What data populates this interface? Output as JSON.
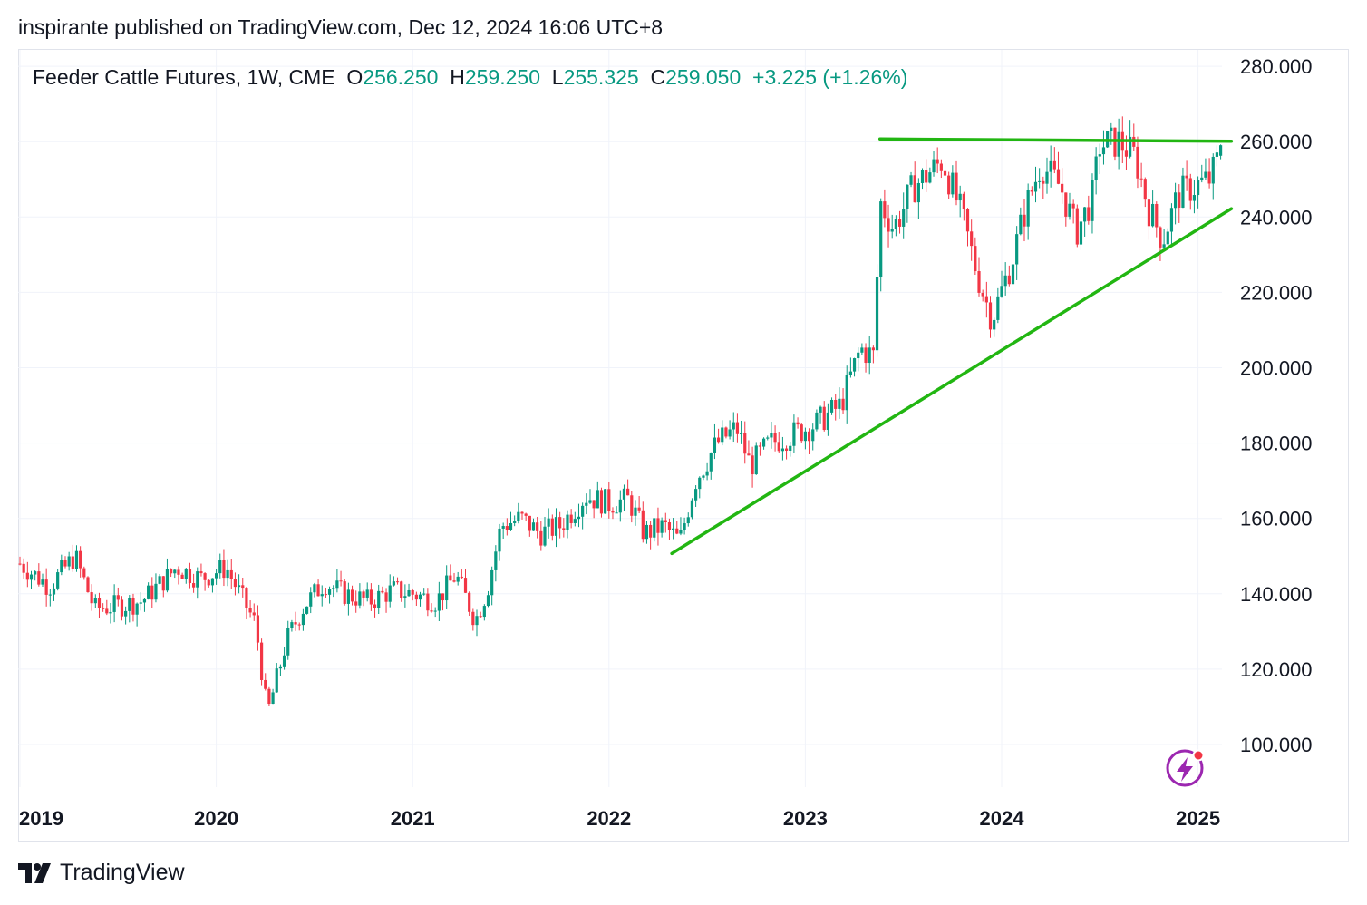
{
  "header": {
    "publish_text": "inspirante published on TradingView.com, Dec 12, 2024 16:06 UTC+8"
  },
  "legend": {
    "symbol": "Feeder Cattle Futures, 1W, CME",
    "open_label": "O",
    "open_value": "256.250",
    "high_label": "H",
    "high_value": "259.250",
    "low_label": "L",
    "low_value": "255.325",
    "close_label": "C",
    "close_value": "259.050",
    "change": "+3.225 (+1.26%)"
  },
  "footer": {
    "brand": "TradingView",
    "logo_icon": "tradingview-logo-icon"
  },
  "colors": {
    "up": "#089981",
    "down": "#f23645",
    "trendline": "#22b612",
    "grid": "#f0f3fa",
    "alert": "#9c27b0"
  },
  "chart_data": {
    "type": "candlestick",
    "title": "Feeder Cattle Futures, 1W, CME",
    "x_tick_labels": [
      "2019",
      "2020",
      "2021",
      "2022",
      "2023",
      "2024",
      "2025"
    ],
    "y_tick_labels": [
      "100.000",
      "120.000",
      "140.000",
      "160.000",
      "180.000",
      "200.000",
      "220.000",
      "240.000",
      "260.000",
      "280.000"
    ],
    "ylim": [
      88,
      283
    ],
    "xlim": [
      2019.0,
      2025.2
    ],
    "grid": true,
    "price_anchors": [
      [
        2019.0,
        148
      ],
      [
        2019.15,
        142
      ],
      [
        2019.28,
        150
      ],
      [
        2019.38,
        136
      ],
      [
        2019.52,
        137
      ],
      [
        2019.62,
        138
      ],
      [
        2019.8,
        147
      ],
      [
        2019.92,
        144
      ],
      [
        2020.05,
        147
      ],
      [
        2020.12,
        140
      ],
      [
        2020.2,
        132
      ],
      [
        2020.26,
        108
      ],
      [
        2020.3,
        116
      ],
      [
        2020.36,
        128
      ],
      [
        2020.45,
        137
      ],
      [
        2020.55,
        143
      ],
      [
        2020.65,
        140
      ],
      [
        2020.78,
        138
      ],
      [
        2020.9,
        141
      ],
      [
        2021.0,
        140
      ],
      [
        2021.12,
        138
      ],
      [
        2021.22,
        145
      ],
      [
        2021.32,
        133
      ],
      [
        2021.38,
        141
      ],
      [
        2021.45,
        158
      ],
      [
        2021.55,
        160
      ],
      [
        2021.65,
        156
      ],
      [
        2021.75,
        158
      ],
      [
        2021.88,
        166
      ],
      [
        2022.0,
        164
      ],
      [
        2022.1,
        165
      ],
      [
        2022.18,
        156
      ],
      [
        2022.28,
        158
      ],
      [
        2022.36,
        154
      ],
      [
        2022.44,
        170
      ],
      [
        2022.55,
        180
      ],
      [
        2022.65,
        184
      ],
      [
        2022.72,
        174
      ],
      [
        2022.82,
        180
      ],
      [
        2022.92,
        182
      ],
      [
        2023.05,
        185
      ],
      [
        2023.18,
        190
      ],
      [
        2023.28,
        205
      ],
      [
        2023.35,
        203
      ],
      [
        2023.38,
        244
      ],
      [
        2023.45,
        237
      ],
      [
        2023.55,
        248
      ],
      [
        2023.7,
        255
      ],
      [
        2023.8,
        240
      ],
      [
        2023.88,
        224
      ],
      [
        2023.95,
        213
      ],
      [
        2024.05,
        228
      ],
      [
        2024.12,
        242
      ],
      [
        2024.2,
        254
      ],
      [
        2024.3,
        248
      ],
      [
        2024.38,
        236
      ],
      [
        2024.46,
        245
      ],
      [
        2024.5,
        259
      ],
      [
        2024.6,
        260
      ],
      [
        2024.68,
        256
      ],
      [
        2024.75,
        242
      ],
      [
        2024.82,
        234
      ],
      [
        2024.9,
        246
      ],
      [
        2024.98,
        248
      ],
      [
        2025.06,
        250
      ],
      [
        2025.13,
        259
      ]
    ],
    "last_candle": {
      "open": 256.25,
      "high": 259.25,
      "low": 255.325,
      "close": 259.05
    },
    "annotations": [
      {
        "type": "trendline",
        "name": "resistance",
        "from": [
          2023.38,
          260.7
        ],
        "to": [
          2025.17,
          260.1
        ]
      },
      {
        "type": "trendline",
        "name": "support",
        "from": [
          2022.32,
          150.7
        ],
        "to": [
          2025.17,
          242.2
        ]
      }
    ]
  }
}
